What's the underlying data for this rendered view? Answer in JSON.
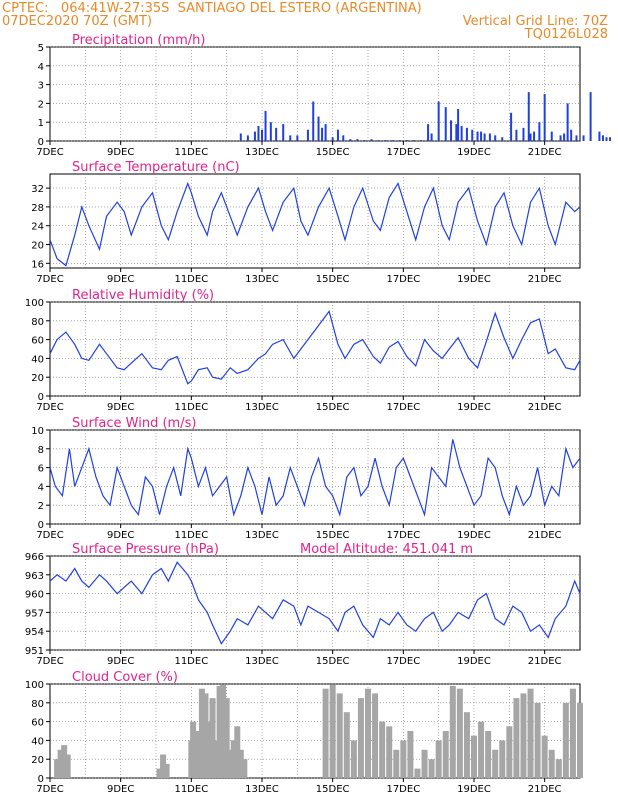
{
  "header": {
    "line1_left": "CPTEC:   064:41W-27:35S  SANTIAGO DEL ESTERO (ARGENTINA)",
    "line2_left": "07DEC2020 70Z (GMT)",
    "line2_right": "Vertical Grid Line: 70Z",
    "line3_right": "TQ0126L028"
  },
  "colors": {
    "header": "#e88a2a",
    "title": "#e0248c",
    "series": "#2040e0",
    "cloud": "#a6a6a6"
  },
  "x_tick_labels": [
    "7DEC",
    "9DEC",
    "11DEC",
    "13DEC",
    "15DEC",
    "17DEC",
    "19DEC",
    "21DEC"
  ],
  "chart_data": [
    {
      "type": "bar",
      "title": "Precipitation (mm/h)",
      "ylim": [
        0,
        5
      ],
      "yticks": [
        0,
        1,
        2,
        3,
        4,
        5
      ],
      "x_days_from_7dec": [
        5.4,
        5.6,
        5.8,
        5.9,
        6.0,
        6.1,
        6.25,
        6.4,
        6.6,
        6.8,
        7.0,
        7.3,
        7.45,
        7.6,
        7.7,
        7.8,
        8.0,
        8.15,
        8.3,
        8.5,
        8.7,
        8.9,
        9.1,
        9.3,
        9.5,
        9.7,
        9.9,
        10.1,
        10.3,
        10.5,
        10.7,
        10.8,
        11.0,
        11.2,
        11.35,
        11.5,
        11.55,
        11.65,
        11.8,
        11.95,
        12.1,
        12.2,
        12.3,
        12.45,
        12.6,
        12.8,
        13.05,
        13.2,
        13.4,
        13.55,
        13.6,
        13.7,
        13.85,
        14.0,
        14.2,
        14.45,
        14.55,
        14.65,
        14.75,
        14.9,
        15.1,
        15.3,
        15.55,
        15.65,
        15.75,
        15.85
      ],
      "values": [
        0.4,
        0.3,
        0.5,
        0.8,
        0.6,
        1.6,
        1.0,
        0.7,
        0.9,
        0.3,
        0.3,
        0.6,
        2.1,
        1.3,
        0.7,
        0.9,
        0.2,
        0.6,
        0.3,
        0.1,
        0.1,
        0.05,
        0.1,
        0.05,
        0.05,
        0.05,
        0.05,
        0.05,
        0.05,
        0.05,
        0.9,
        0.4,
        2.1,
        1.8,
        1.1,
        0.9,
        1.7,
        0.8,
        0.7,
        0.6,
        0.5,
        0.5,
        0.4,
        0.4,
        0.3,
        0.2,
        1.5,
        0.6,
        0.7,
        2.6,
        0.4,
        0.5,
        1.0,
        2.5,
        0.5,
        0.3,
        0.4,
        2.0,
        0.6,
        0.3,
        0.3,
        2.6,
        0.5,
        0.3,
        0.2,
        0.2
      ]
    },
    {
      "type": "line",
      "title": "Surface Temperature (nC)",
      "ylim": [
        15,
        35
      ],
      "yticks": [
        16,
        20,
        24,
        28,
        32
      ],
      "x_days_from_7dec": [
        0,
        0.2,
        0.45,
        0.7,
        0.9,
        1.1,
        1.4,
        1.6,
        1.9,
        2.1,
        2.3,
        2.6,
        2.9,
        3.15,
        3.35,
        3.6,
        3.9,
        4.0,
        4.2,
        4.45,
        4.6,
        4.85,
        5.1,
        5.3,
        5.6,
        5.9,
        6.1,
        6.3,
        6.6,
        6.9,
        7.1,
        7.3,
        7.6,
        7.9,
        8.15,
        8.35,
        8.6,
        8.85,
        9.15,
        9.35,
        9.6,
        9.85,
        10.1,
        10.35,
        10.6,
        10.85,
        11.1,
        11.3,
        11.55,
        11.85,
        12.1,
        12.35,
        12.6,
        12.85,
        13.1,
        13.35,
        13.6,
        13.85,
        14.1,
        14.3,
        14.6,
        14.85,
        15.0
      ],
      "values": [
        21,
        17,
        15.5,
        22,
        28,
        24,
        19,
        26,
        29,
        27,
        22,
        28,
        31,
        24,
        21,
        27,
        33,
        31,
        26,
        22,
        27,
        31,
        26,
        22,
        28,
        32,
        27,
        23,
        29,
        32,
        25,
        22,
        28,
        32,
        26,
        21,
        28,
        32,
        25,
        23,
        30,
        33,
        27,
        21,
        28,
        32,
        24,
        21,
        29,
        32,
        25,
        20,
        28,
        31,
        24,
        20,
        29,
        32,
        24,
        20,
        29,
        27,
        28
      ]
    },
    {
      "type": "line",
      "title": "Relative Humidity (%)",
      "ylim": [
        0,
        100
      ],
      "yticks": [
        0,
        20,
        40,
        60,
        80,
        100
      ],
      "x_days_from_7dec": [
        0,
        0.2,
        0.45,
        0.7,
        0.9,
        1.1,
        1.4,
        1.6,
        1.9,
        2.1,
        2.3,
        2.6,
        2.9,
        3.15,
        3.35,
        3.6,
        3.9,
        4.0,
        4.2,
        4.45,
        4.6,
        4.85,
        5.1,
        5.3,
        5.6,
        5.9,
        6.1,
        6.3,
        6.6,
        6.9,
        7.1,
        7.3,
        7.6,
        7.9,
        8.15,
        8.35,
        8.6,
        8.85,
        9.15,
        9.35,
        9.6,
        9.85,
        10.1,
        10.35,
        10.6,
        10.85,
        11.1,
        11.3,
        11.55,
        11.85,
        12.1,
        12.35,
        12.6,
        12.85,
        13.1,
        13.35,
        13.6,
        13.85,
        14.1,
        14.3,
        14.6,
        14.85,
        15.0
      ],
      "values": [
        45,
        60,
        68,
        55,
        40,
        38,
        55,
        45,
        30,
        28,
        35,
        45,
        30,
        28,
        38,
        42,
        13,
        16,
        28,
        30,
        20,
        18,
        30,
        24,
        28,
        40,
        45,
        55,
        60,
        40,
        50,
        60,
        75,
        90,
        55,
        40,
        55,
        60,
        42,
        35,
        52,
        58,
        42,
        32,
        60,
        48,
        40,
        50,
        62,
        40,
        30,
        58,
        88,
        62,
        40,
        60,
        78,
        82,
        45,
        50,
        30,
        28,
        38
      ]
    },
    {
      "type": "line",
      "title": "Surface Wind (m/s)",
      "ylim": [
        0,
        10
      ],
      "yticks": [
        0,
        2,
        4,
        6,
        8,
        10
      ],
      "x_days_from_7dec": [
        0,
        0.15,
        0.35,
        0.55,
        0.7,
        0.9,
        1.1,
        1.3,
        1.5,
        1.7,
        1.9,
        2.1,
        2.3,
        2.5,
        2.7,
        2.9,
        3.1,
        3.3,
        3.5,
        3.7,
        3.9,
        4.0,
        4.2,
        4.4,
        4.6,
        4.8,
        5.0,
        5.2,
        5.4,
        5.6,
        5.8,
        6.0,
        6.2,
        6.4,
        6.6,
        6.8,
        7.0,
        7.2,
        7.4,
        7.6,
        7.8,
        8.0,
        8.2,
        8.4,
        8.6,
        8.8,
        9.0,
        9.2,
        9.4,
        9.6,
        9.8,
        10.0,
        10.2,
        10.4,
        10.6,
        10.8,
        11.0,
        11.2,
        11.4,
        11.6,
        11.8,
        12.0,
        12.2,
        12.4,
        12.6,
        12.8,
        13.0,
        13.2,
        13.4,
        13.6,
        13.8,
        14.0,
        14.2,
        14.4,
        14.6,
        14.8,
        15.0
      ],
      "values": [
        6,
        4,
        3,
        8,
        4,
        6,
        8,
        5,
        3,
        2,
        6,
        4,
        2,
        1,
        5,
        4,
        1,
        4,
        6,
        3,
        8,
        7,
        4,
        6,
        3,
        4,
        5,
        1,
        3,
        6,
        4,
        1,
        5,
        2,
        3,
        6,
        4,
        2,
        5,
        7,
        4,
        3,
        1,
        5,
        6,
        3,
        4,
        7,
        4,
        2,
        6,
        7,
        5,
        3,
        1,
        6,
        5,
        4,
        9,
        6,
        4,
        2,
        3,
        7,
        6,
        3,
        1,
        4,
        2,
        3,
        6,
        2,
        4,
        3,
        8,
        6,
        7
      ]
    },
    {
      "type": "line",
      "title": "Surface Pressure (hPa)",
      "annotation": "Model Altitude: 451.041 m",
      "ylim": [
        951,
        966
      ],
      "yticks": [
        951,
        954,
        957,
        960,
        963,
        966
      ],
      "x_days_from_7dec": [
        0,
        0.2,
        0.45,
        0.7,
        0.9,
        1.1,
        1.4,
        1.6,
        1.9,
        2.1,
        2.3,
        2.6,
        2.9,
        3.15,
        3.35,
        3.6,
        3.9,
        4.0,
        4.2,
        4.45,
        4.6,
        4.85,
        5.1,
        5.3,
        5.6,
        5.9,
        6.1,
        6.3,
        6.6,
        6.9,
        7.1,
        7.3,
        7.6,
        7.9,
        8.15,
        8.35,
        8.6,
        8.85,
        9.15,
        9.35,
        9.6,
        9.85,
        10.1,
        10.35,
        10.6,
        10.85,
        11.1,
        11.3,
        11.55,
        11.85,
        12.1,
        12.35,
        12.6,
        12.85,
        13.1,
        13.35,
        13.6,
        13.85,
        14.1,
        14.3,
        14.6,
        14.85,
        15.0
      ],
      "values": [
        962,
        963,
        962,
        964,
        962,
        961,
        963,
        962,
        960,
        961,
        962,
        960,
        963,
        964,
        962,
        965,
        963,
        962,
        959,
        957,
        955,
        952,
        954,
        956,
        955,
        958,
        957,
        956,
        959,
        958,
        955,
        958,
        957,
        956,
        954,
        957,
        958,
        955,
        953,
        956,
        955,
        957,
        955,
        954,
        956,
        957,
        954,
        955,
        957,
        956,
        959,
        960,
        956,
        955,
        958,
        957,
        954,
        955,
        953,
        956,
        958,
        962,
        960
      ]
    },
    {
      "type": "area",
      "title": "Cloud Cover (%)",
      "ylim": [
        0,
        100
      ],
      "yticks": [
        0,
        20,
        40,
        60,
        80,
        100
      ],
      "x_days_from_7dec": [
        0.2,
        0.3,
        0.4,
        0.5,
        3.1,
        3.2,
        3.3,
        4.0,
        4.05,
        4.1,
        4.15,
        4.2,
        4.3,
        4.4,
        4.5,
        4.6,
        4.7,
        4.8,
        4.9,
        5.0,
        5.1,
        5.2,
        5.3,
        5.4,
        5.5,
        5.6,
        5.7,
        5.8,
        5.9,
        6.0,
        6.1,
        6.2,
        6.3,
        6.4,
        6.5,
        6.6,
        6.7,
        6.8,
        7.0,
        7.2,
        7.4,
        7.6,
        7.8,
        8.0,
        8.2,
        8.4,
        8.6,
        8.8,
        9.0,
        9.2,
        9.4,
        9.6,
        9.8,
        10.0,
        10.2,
        10.4,
        10.6,
        10.8,
        11.0,
        11.2,
        11.4,
        11.6,
        11.8,
        12.0,
        12.2,
        12.4,
        12.6,
        12.8,
        13.0,
        13.2,
        13.4,
        13.6,
        13.8,
        14.0,
        14.2,
        14.4,
        14.6,
        14.8,
        15.0
      ],
      "values": [
        20,
        30,
        35,
        25,
        10,
        25,
        15,
        40,
        60,
        45,
        30,
        50,
        95,
        90,
        60,
        85,
        40,
        98,
        99,
        85,
        30,
        40,
        55,
        30,
        20,
        0,
        0,
        0,
        0,
        0,
        0,
        0,
        0,
        0,
        0,
        0,
        0,
        0,
        0,
        0,
        0,
        0,
        95,
        99,
        90,
        70,
        40,
        85,
        95,
        90,
        60,
        55,
        30,
        40,
        50,
        10,
        30,
        20,
        40,
        50,
        98,
        95,
        70,
        45,
        60,
        50,
        30,
        40,
        55,
        85,
        90,
        95,
        80,
        45,
        30,
        20,
        80,
        95,
        80
      ]
    }
  ]
}
